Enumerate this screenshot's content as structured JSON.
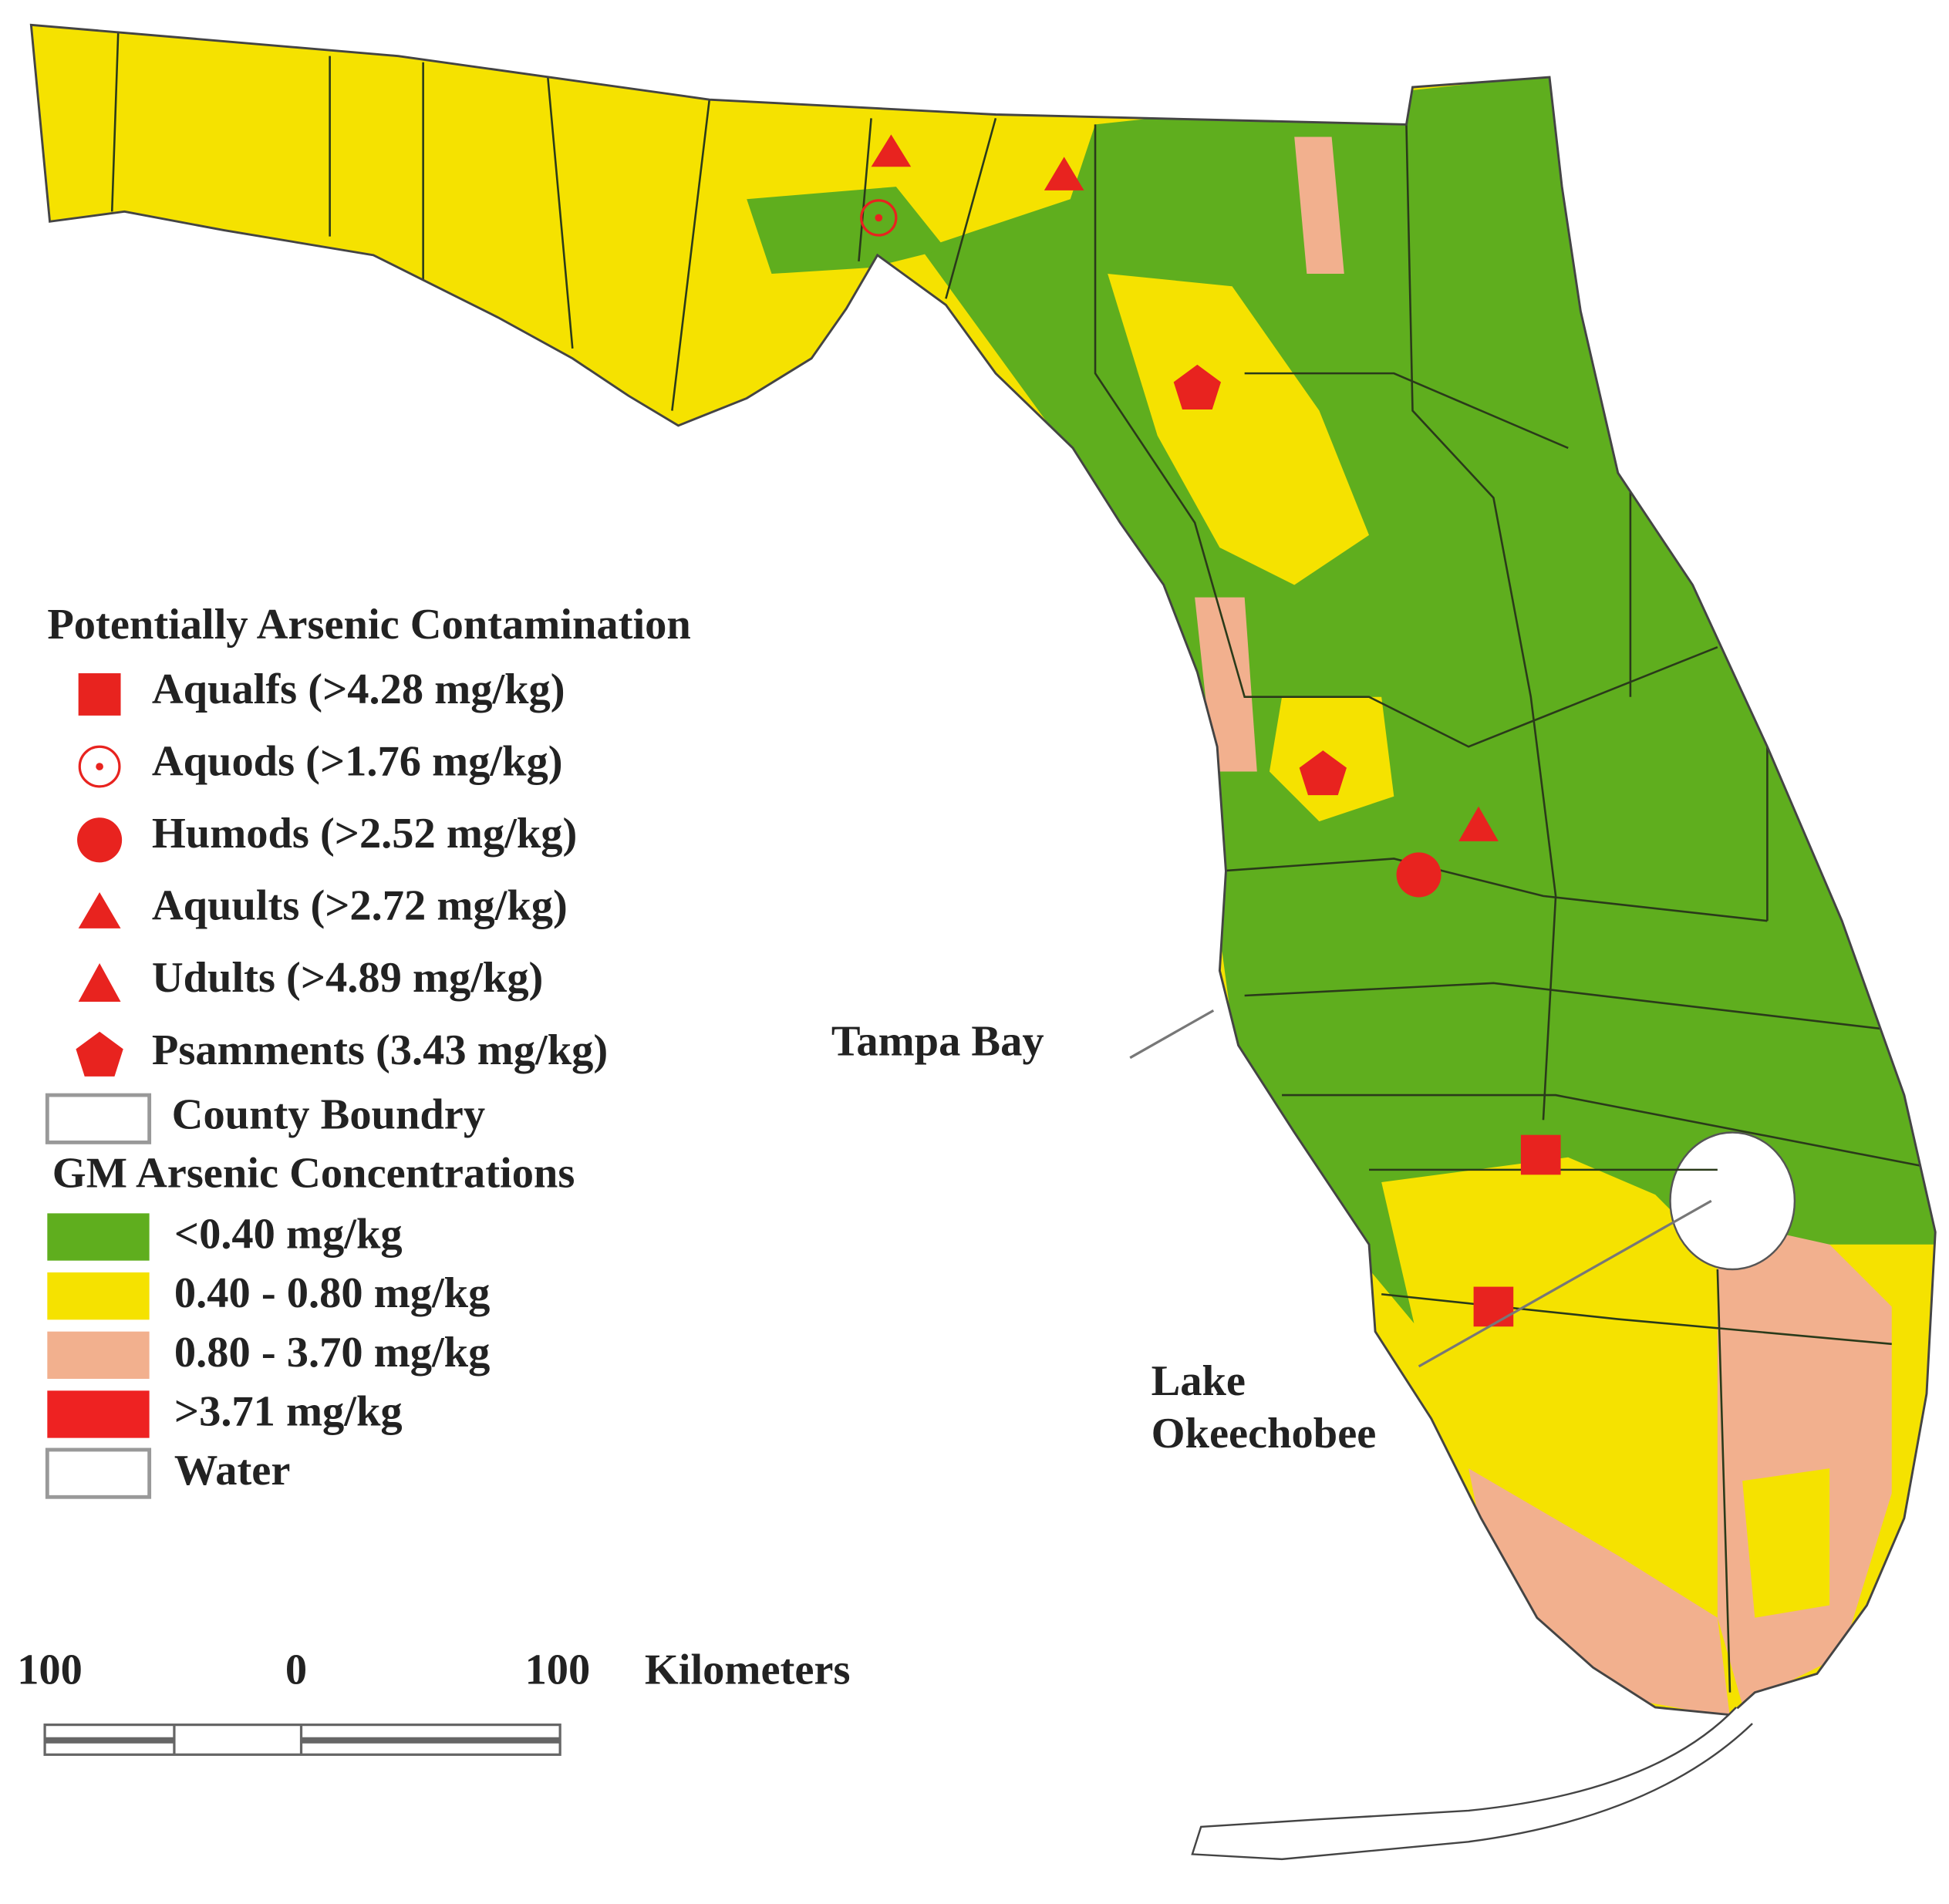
{
  "legend": {
    "contamination_title": "Potentially Arsenic Contamination",
    "contamination_items": [
      {
        "label": "Aqualfs (>4.28 mg/kg)"
      },
      {
        "label": "Aquods (>1.76 mg/kg)"
      },
      {
        "label": "Humods (>2.52 mg/kg)"
      },
      {
        "label": "Aquults (>2.72 mg/kg)"
      },
      {
        "label": "Udults (>4.89 mg/kg)"
      },
      {
        "label": "Psamments (3.43 mg/kg)"
      }
    ],
    "boundary_label": "County Boundry",
    "concentration_title": "GM Arsenic Concentrations",
    "concentration_classes": [
      {
        "label": "<0.40 mg/kg",
        "color": "#5fae1e"
      },
      {
        "label": "0.40 - 0.80 mg/kg",
        "color": "#f5e200"
      },
      {
        "label": "0.80 - 3.70 mg/kg",
        "color": "#f2b08e"
      },
      {
        "label": ">3.71 mg/kg",
        "color": "#ee2222"
      },
      {
        "label": "Water",
        "color": "#ffffff"
      }
    ]
  },
  "annotations": {
    "tampa_bay": "Tampa Bay",
    "lake_line1": "Lake",
    "lake_line2": "Okeechobee"
  },
  "scale_bar": {
    "labels": [
      "100",
      "0",
      "100"
    ],
    "unit": "Kilometers"
  }
}
